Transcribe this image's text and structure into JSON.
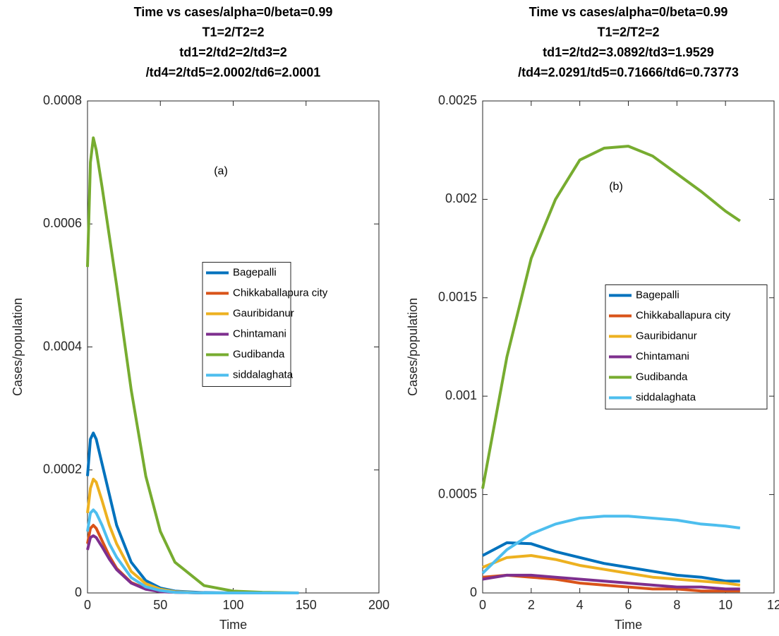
{
  "chart_data": [
    {
      "type": "line",
      "title": [
        "Time vs cases/alpha=0/beta=0.99",
        "T1=2/T2=2",
        "td1=2/td2=2/td3=2",
        "/td4=2/td5=2.0002/td6=2.0001"
      ],
      "annotation": "(a)",
      "xlabel": "Time",
      "ylabel": "Cases/population",
      "x": [
        0,
        2,
        4,
        6,
        10,
        15,
        20,
        30,
        40,
        50,
        60,
        80,
        100,
        120,
        145
      ],
      "series": [
        {
          "name": "Bagepalli",
          "color": "#0072bd",
          "values": [
            0.00019,
            0.00025,
            0.00026,
            0.00025,
            0.00021,
            0.00016,
            0.00011,
            5e-05,
            2e-05,
            8e-06,
            3e-06,
            5e-07,
            0,
            0,
            0
          ]
        },
        {
          "name": "Chikkaballapura city",
          "color": "#d95319",
          "values": [
            8e-05,
            0.000105,
            0.00011,
            0.000105,
            8.5e-05,
            6e-05,
            4e-05,
            1.7e-05,
            7e-06,
            3e-06,
            1e-06,
            0,
            0,
            0,
            0
          ]
        },
        {
          "name": "Gauribidanur",
          "color": "#edb120",
          "values": [
            0.00013,
            0.00017,
            0.000185,
            0.00018,
            0.00015,
            0.00011,
            8e-05,
            3.5e-05,
            1.5e-05,
            6e-06,
            2e-06,
            0,
            0,
            0,
            0
          ]
        },
        {
          "name": "Chintamani",
          "color": "#7e2f8e",
          "values": [
            7e-05,
            9e-05,
            9.3e-05,
            9e-05,
            7.5e-05,
            5.5e-05,
            3.8e-05,
            1.6e-05,
            6e-06,
            2e-06,
            1e-06,
            0,
            0,
            0,
            0
          ]
        },
        {
          "name": "Gudibanda",
          "color": "#77ac30",
          "values": [
            0.00053,
            0.0007,
            0.00074,
            0.00072,
            0.00066,
            0.00058,
            0.0005,
            0.00033,
            0.00019,
            0.0001,
            5e-05,
            1.2e-05,
            3e-06,
            1e-06,
            0
          ]
        },
        {
          "name": "siddalaghata",
          "color": "#4dbeee",
          "values": [
            0.0001,
            0.00013,
            0.000135,
            0.00013,
            0.00011,
            8e-05,
            5.8e-05,
            2.5e-05,
            1e-05,
            4e-06,
            1e-06,
            0,
            0,
            0,
            0
          ]
        }
      ],
      "xlim": [
        0,
        200
      ],
      "xticks": [
        0,
        50,
        100,
        150,
        200
      ],
      "ylim": [
        0,
        0.0008
      ],
      "yticks": [
        0,
        0.0002,
        0.0004,
        0.0006,
        0.0008
      ],
      "grid": false,
      "legend_position": "east"
    },
    {
      "type": "line",
      "title": [
        "Time vs cases/alpha=0/beta=0.99",
        "T1=2/T2=2",
        "td1=2/td2=3.0892/td3=1.9529",
        "/td4=2.0291/td5=0.71666/td6=0.73773"
      ],
      "annotation": "(b)",
      "xlabel": "Time",
      "ylabel": "Cases/population",
      "x": [
        0,
        1,
        2,
        3,
        4,
        5,
        6,
        7,
        8,
        9,
        10,
        10.6
      ],
      "series": [
        {
          "name": "Bagepalli",
          "color": "#0072bd",
          "values": [
            0.00019,
            0.000255,
            0.00025,
            0.00021,
            0.00018,
            0.00015,
            0.00013,
            0.00011,
            9e-05,
            8e-05,
            6e-05,
            6e-05
          ]
        },
        {
          "name": "Chikkaballapura city",
          "color": "#d95319",
          "values": [
            8e-05,
            9e-05,
            8e-05,
            7e-05,
            5e-05,
            4e-05,
            3e-05,
            2e-05,
            2e-05,
            1e-05,
            1e-05,
            1e-05
          ]
        },
        {
          "name": "Gauribidanur",
          "color": "#edb120",
          "values": [
            0.00013,
            0.00018,
            0.00019,
            0.00017,
            0.00014,
            0.00012,
            0.0001,
            8e-05,
            7e-05,
            6e-05,
            5e-05,
            4e-05
          ]
        },
        {
          "name": "Chintamani",
          "color": "#7e2f8e",
          "values": [
            7e-05,
            9e-05,
            9e-05,
            8e-05,
            7e-05,
            6e-05,
            5e-05,
            4e-05,
            3e-05,
            3e-05,
            2e-05,
            2e-05
          ]
        },
        {
          "name": "Gudibanda",
          "color": "#77ac30",
          "values": [
            0.00053,
            0.0012,
            0.0017,
            0.002,
            0.0022,
            0.00226,
            0.00227,
            0.00222,
            0.00213,
            0.00204,
            0.00194,
            0.00189
          ]
        },
        {
          "name": "siddalaghata",
          "color": "#4dbeee",
          "values": [
            0.0001,
            0.00022,
            0.0003,
            0.00035,
            0.00038,
            0.00039,
            0.00039,
            0.00038,
            0.00037,
            0.00035,
            0.00034,
            0.00033
          ]
        }
      ],
      "xlim": [
        0,
        12
      ],
      "xticks": [
        0,
        2,
        4,
        6,
        8,
        10,
        12
      ],
      "ylim": [
        0,
        0.0025
      ],
      "yticks": [
        0,
        0.0005,
        0.001,
        0.0015,
        0.002,
        0.0025
      ],
      "grid": false,
      "legend_position": "east"
    }
  ]
}
